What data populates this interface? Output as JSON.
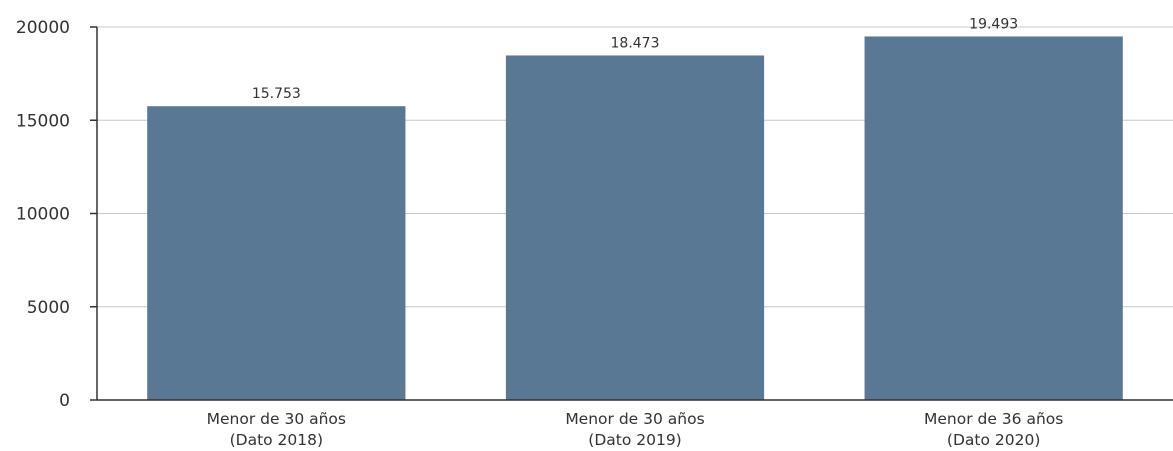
{
  "chart_data": {
    "type": "bar",
    "categories": [
      [
        "Menor de 30 años",
        "(Dato 2018)"
      ],
      [
        "Menor de 30 años",
        "(Dato 2019)"
      ],
      [
        "Menor de 36 años",
        "(Dato 2020)"
      ]
    ],
    "values": [
      15753,
      18473,
      19493
    ],
    "value_labels": [
      "15.753",
      "18.473",
      "19.493"
    ],
    "yticks": [
      0,
      5000,
      10000,
      15000,
      20000
    ],
    "ylim": [
      0,
      20000
    ],
    "grid": true,
    "colors": {
      "bar": "#587893",
      "grid": "#c8c8c8",
      "axis": "#333333",
      "text": "#333333"
    }
  }
}
